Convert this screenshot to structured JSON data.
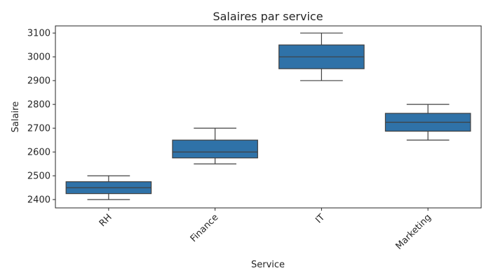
{
  "chart_data": {
    "type": "boxplot",
    "title": "Salaires par service",
    "xlabel": "Service",
    "ylabel": "Salaire",
    "categories": [
      "RH",
      "Finance",
      "IT",
      "Marketing"
    ],
    "boxes": [
      {
        "category": "RH",
        "min": 2400,
        "q1": 2425,
        "median": 2450,
        "q3": 2475,
        "max": 2500
      },
      {
        "category": "Finance",
        "min": 2550,
        "q1": 2575,
        "median": 2600,
        "q3": 2650,
        "max": 2700
      },
      {
        "category": "IT",
        "min": 2900,
        "q1": 2950,
        "median": 3000,
        "q3": 3050,
        "max": 3100
      },
      {
        "category": "Marketing",
        "min": 2650,
        "q1": 2687.5,
        "median": 2725,
        "q3": 2762.5,
        "max": 2800
      }
    ],
    "ylim": [
      2365,
      3130
    ],
    "yticks": [
      2400,
      2500,
      2600,
      2700,
      2800,
      2900,
      3000,
      3100
    ],
    "grid": false,
    "colors": {
      "box_fill": "#2f72a8",
      "line": "#404040",
      "axis": "#262626"
    }
  }
}
